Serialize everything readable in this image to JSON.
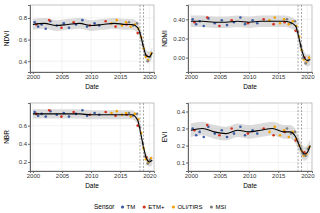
{
  "chart_data": [
    {
      "type": "scatter",
      "y_label": "NDVI",
      "x_label": "Date",
      "xlim": [
        1999.5,
        2020.8
      ],
      "xticks": [
        2000,
        2005,
        2010,
        2015,
        2020
      ],
      "ylim": [
        0.3,
        0.92
      ],
      "yticks": [
        0.4,
        0.6,
        0.8
      ],
      "grid": true,
      "legend": "bottom",
      "legend_title": "Sensor",
      "series": [
        {
          "name": "TM",
          "color": "#3b5ba5",
          "x": [
            2000.3,
            2000.9,
            2001.5,
            2002.2,
            2003.0,
            2004.1,
            2005.3,
            2006.2,
            2007.4,
            2008.5,
            2009.3,
            2010.6,
            2011.4
          ],
          "values": [
            0.76,
            0.72,
            0.74,
            0.7,
            0.77,
            0.73,
            0.75,
            0.71,
            0.74,
            0.78,
            0.72,
            0.75,
            0.73
          ]
        },
        {
          "name": "ETM+",
          "color": "#d7301f",
          "x": [
            2000.6,
            2002.8,
            2004.9,
            2007.0,
            2009.8,
            2012.5,
            2014.2,
            2016.1,
            2018.0,
            2019.5
          ],
          "values": [
            0.74,
            0.78,
            0.71,
            0.76,
            0.73,
            0.77,
            0.72,
            0.74,
            0.66,
            0.45
          ]
        },
        {
          "name": "OLI/TIRS",
          "color": "#f4a300",
          "x": [
            2013.5,
            2014.4,
            2015.3,
            2016.0,
            2016.8,
            2017.5,
            2018.1,
            2018.6,
            2019.0,
            2019.4,
            2019.8,
            2020.3
          ],
          "values": [
            0.75,
            0.78,
            0.73,
            0.76,
            0.72,
            0.74,
            0.7,
            0.62,
            0.52,
            0.44,
            0.41,
            0.47
          ]
        },
        {
          "name": "MSI",
          "color": "#7f7f7f",
          "x": [
            2016.5,
            2017.2,
            2017.9,
            2018.4,
            2018.9,
            2019.3,
            2019.7,
            2020.1
          ],
          "values": [
            0.76,
            0.73,
            0.75,
            0.66,
            0.55,
            0.46,
            0.4,
            0.44
          ]
        }
      ],
      "fit": {
        "x": [
          2000,
          2002,
          2004,
          2006,
          2008,
          2010,
          2012,
          2014,
          2016,
          2017,
          2018,
          2018.5,
          2019,
          2019.5,
          2020,
          2020.5
        ],
        "values": [
          0.74,
          0.75,
          0.73,
          0.74,
          0.75,
          0.73,
          0.74,
          0.75,
          0.74,
          0.74,
          0.71,
          0.64,
          0.53,
          0.45,
          0.44,
          0.48
        ],
        "lower": [
          0.69,
          0.7,
          0.68,
          0.69,
          0.7,
          0.68,
          0.69,
          0.7,
          0.69,
          0.69,
          0.66,
          0.59,
          0.48,
          0.4,
          0.39,
          0.43
        ],
        "upper": [
          0.79,
          0.8,
          0.78,
          0.79,
          0.8,
          0.78,
          0.79,
          0.8,
          0.79,
          0.79,
          0.76,
          0.69,
          0.58,
          0.5,
          0.49,
          0.53
        ]
      },
      "vlines": [
        2018.4,
        2019.0
      ]
    },
    {
      "type": "scatter",
      "y_label": "NDMI",
      "x_label": "Date",
      "xlim": [
        1999.5,
        2020.8
      ],
      "xticks": [
        2000,
        2005,
        2010,
        2015,
        2020
      ],
      "ylim": [
        -0.15,
        0.55
      ],
      "yticks": [
        {
          "value": 0,
          "label": "0.00"
        },
        {
          "value": 0.2,
          "label": "0.20"
        },
        {
          "value": 0.4,
          "label": "0.40"
        }
      ],
      "grid": true,
      "series": [
        {
          "name": "TM",
          "color": "#3b5ba5",
          "x": [
            2000.3,
            2000.9,
            2001.5,
            2002.2,
            2003.0,
            2004.1,
            2005.3,
            2006.2,
            2007.4,
            2008.5,
            2009.3,
            2010.6,
            2011.4
          ],
          "values": [
            0.4,
            0.35,
            0.38,
            0.33,
            0.41,
            0.36,
            0.39,
            0.34,
            0.37,
            0.42,
            0.35,
            0.39,
            0.36
          ]
        },
        {
          "name": "ETM+",
          "color": "#d7301f",
          "x": [
            2000.6,
            2002.8,
            2004.9,
            2007.0,
            2009.8,
            2012.5,
            2014.2,
            2016.1,
            2018.0,
            2019.5
          ],
          "values": [
            0.37,
            0.42,
            0.33,
            0.39,
            0.36,
            0.4,
            0.35,
            0.37,
            0.28,
            0.0
          ]
        },
        {
          "name": "OLI/TIRS",
          "color": "#f4a300",
          "x": [
            2013.5,
            2014.4,
            2015.3,
            2016.0,
            2016.8,
            2017.5,
            2018.1,
            2018.6,
            2019.0,
            2019.4,
            2019.8,
            2020.3
          ],
          "values": [
            0.39,
            0.42,
            0.36,
            0.4,
            0.35,
            0.38,
            0.33,
            0.22,
            0.08,
            -0.02,
            -0.05,
            0.0
          ]
        },
        {
          "name": "MSI",
          "color": "#7f7f7f",
          "x": [
            2016.5,
            2017.2,
            2017.9,
            2018.4,
            2018.9,
            2019.3,
            2019.7,
            2020.1
          ],
          "values": [
            0.4,
            0.36,
            0.38,
            0.27,
            0.12,
            0.0,
            -0.06,
            -0.03
          ]
        }
      ],
      "fit": {
        "x": [
          2000,
          2002,
          2004,
          2006,
          2008,
          2010,
          2012,
          2014,
          2016,
          2017,
          2018,
          2018.5,
          2019,
          2019.5,
          2020,
          2020.5
        ],
        "values": [
          0.38,
          0.38,
          0.37,
          0.37,
          0.38,
          0.37,
          0.38,
          0.38,
          0.38,
          0.37,
          0.33,
          0.22,
          0.09,
          0.0,
          -0.03,
          -0.02
        ],
        "lower": [
          0.32,
          0.32,
          0.31,
          0.31,
          0.32,
          0.31,
          0.32,
          0.32,
          0.32,
          0.31,
          0.27,
          0.16,
          0.03,
          -0.06,
          -0.09,
          -0.08
        ],
        "upper": [
          0.44,
          0.44,
          0.43,
          0.43,
          0.44,
          0.43,
          0.44,
          0.44,
          0.44,
          0.43,
          0.39,
          0.28,
          0.15,
          0.06,
          0.03,
          0.04
        ]
      },
      "vlines": [
        2018.4,
        2019.0
      ]
    },
    {
      "type": "scatter",
      "y_label": "NBR",
      "x_label": "Date",
      "xlim": [
        1999.5,
        2020.8
      ],
      "xticks": [
        2000,
        2005,
        2010,
        2015,
        2020
      ],
      "ylim": [
        0.1,
        0.85
      ],
      "yticks": [
        0.2,
        0.4,
        0.6
      ],
      "grid": true,
      "series": [
        {
          "name": "TM",
          "color": "#3b5ba5",
          "x": [
            2000.3,
            2000.9,
            2001.5,
            2002.2,
            2003.0,
            2004.1,
            2005.3,
            2006.2,
            2007.4,
            2008.5,
            2009.3,
            2010.6,
            2011.4
          ],
          "values": [
            0.75,
            0.71,
            0.73,
            0.7,
            0.76,
            0.72,
            0.74,
            0.7,
            0.73,
            0.77,
            0.71,
            0.74,
            0.72
          ]
        },
        {
          "name": "ETM+",
          "color": "#d7301f",
          "x": [
            2000.6,
            2002.8,
            2004.9,
            2007.0,
            2009.8,
            2012.5,
            2014.2,
            2016.1,
            2018.0,
            2019.5
          ],
          "values": [
            0.73,
            0.77,
            0.7,
            0.75,
            0.72,
            0.75,
            0.71,
            0.72,
            0.6,
            0.25
          ]
        },
        {
          "name": "OLI/TIRS",
          "color": "#f4a300",
          "x": [
            2013.5,
            2014.4,
            2015.3,
            2016.0,
            2016.8,
            2017.5,
            2018.1,
            2018.6,
            2019.0,
            2019.4,
            2019.8,
            2020.3
          ],
          "values": [
            0.74,
            0.76,
            0.72,
            0.74,
            0.7,
            0.73,
            0.67,
            0.52,
            0.35,
            0.23,
            0.19,
            0.24
          ]
        },
        {
          "name": "MSI",
          "color": "#7f7f7f",
          "x": [
            2016.5,
            2017.2,
            2017.9,
            2018.4,
            2018.9,
            2019.3,
            2019.7,
            2020.1
          ],
          "values": [
            0.74,
            0.71,
            0.73,
            0.58,
            0.4,
            0.26,
            0.18,
            0.22
          ]
        }
      ],
      "fit": {
        "x": [
          2000,
          2002,
          2004,
          2006,
          2008,
          2010,
          2012,
          2014,
          2016,
          2017,
          2018,
          2018.5,
          2019,
          2019.5,
          2020,
          2020.5
        ],
        "values": [
          0.73,
          0.73,
          0.73,
          0.73,
          0.73,
          0.72,
          0.72,
          0.72,
          0.72,
          0.72,
          0.66,
          0.52,
          0.36,
          0.24,
          0.2,
          0.22
        ],
        "lower": [
          0.68,
          0.68,
          0.68,
          0.68,
          0.68,
          0.67,
          0.67,
          0.67,
          0.67,
          0.67,
          0.61,
          0.47,
          0.31,
          0.19,
          0.15,
          0.17
        ],
        "upper": [
          0.78,
          0.78,
          0.78,
          0.78,
          0.78,
          0.77,
          0.77,
          0.77,
          0.77,
          0.77,
          0.71,
          0.57,
          0.41,
          0.29,
          0.25,
          0.27
        ]
      },
      "vlines": [
        2018.4,
        2019.0
      ]
    },
    {
      "type": "scatter",
      "y_label": "EVI",
      "x_label": "Date",
      "xlim": [
        1999.5,
        2020.8
      ],
      "xticks": [
        2000,
        2005,
        2010,
        2015,
        2020
      ],
      "ylim": [
        0.05,
        0.45
      ],
      "yticks": [
        0.1,
        0.2,
        0.3,
        0.4
      ],
      "grid": true,
      "series": [
        {
          "name": "TM",
          "color": "#3b5ba5",
          "x": [
            2000.3,
            2000.9,
            2001.5,
            2002.2,
            2003.0,
            2004.1,
            2005.3,
            2006.2,
            2007.4,
            2008.5,
            2009.3,
            2010.6,
            2011.4
          ],
          "values": [
            0.3,
            0.26,
            0.28,
            0.25,
            0.31,
            0.27,
            0.29,
            0.25,
            0.27,
            0.31,
            0.26,
            0.29,
            0.27
          ]
        },
        {
          "name": "ETM+",
          "color": "#d7301f",
          "x": [
            2000.6,
            2002.8,
            2004.9,
            2007.0,
            2009.8,
            2012.5,
            2014.2,
            2016.1,
            2018.0,
            2019.5
          ],
          "values": [
            0.29,
            0.32,
            0.26,
            0.3,
            0.27,
            0.3,
            0.26,
            0.28,
            0.23,
            0.16
          ]
        },
        {
          "name": "OLI/TIRS",
          "color": "#f4a300",
          "x": [
            2013.5,
            2014.4,
            2015.3,
            2016.0,
            2016.8,
            2017.5,
            2018.1,
            2018.6,
            2019.0,
            2019.4,
            2019.8,
            2020.3
          ],
          "values": [
            0.28,
            0.31,
            0.26,
            0.29,
            0.25,
            0.28,
            0.24,
            0.2,
            0.17,
            0.14,
            0.15,
            0.19
          ]
        },
        {
          "name": "MSI",
          "color": "#7f7f7f",
          "x": [
            2016.5,
            2017.2,
            2017.9,
            2018.4,
            2018.9,
            2019.3,
            2019.7,
            2020.1
          ],
          "values": [
            0.3,
            0.27,
            0.28,
            0.22,
            0.18,
            0.15,
            0.14,
            0.18
          ]
        }
      ],
      "fit": {
        "x": [
          2000,
          2002,
          2004,
          2006,
          2008,
          2010,
          2012,
          2014,
          2016,
          2017,
          2018,
          2018.5,
          2019,
          2019.5,
          2020,
          2020.5
        ],
        "values": [
          0.29,
          0.3,
          0.28,
          0.27,
          0.29,
          0.28,
          0.29,
          0.3,
          0.28,
          0.28,
          0.25,
          0.21,
          0.17,
          0.15,
          0.16,
          0.2
        ],
        "lower": [
          0.25,
          0.26,
          0.24,
          0.23,
          0.25,
          0.24,
          0.25,
          0.26,
          0.24,
          0.24,
          0.21,
          0.17,
          0.13,
          0.11,
          0.12,
          0.16
        ],
        "upper": [
          0.33,
          0.34,
          0.32,
          0.31,
          0.33,
          0.32,
          0.33,
          0.34,
          0.32,
          0.32,
          0.29,
          0.25,
          0.21,
          0.19,
          0.2,
          0.24
        ]
      },
      "vlines": [
        2018.4,
        2019.0
      ]
    }
  ]
}
